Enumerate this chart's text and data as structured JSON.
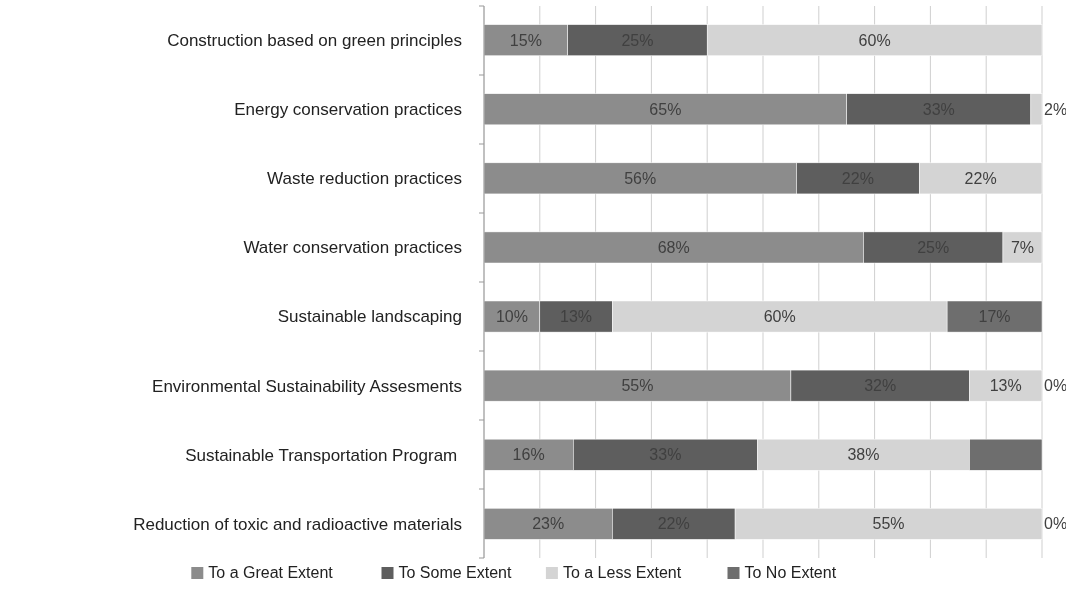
{
  "chart_data": {
    "type": "bar",
    "orientation": "horizontal",
    "stacked": true,
    "categories": [
      "Construction based on green principles",
      "Energy conservation practices",
      "Waste reduction practices",
      "Water conservation practices",
      "Sustainable landscaping",
      "Environmental Sustainability Assesments",
      "Sustainable Transportation Program ",
      "Reduction of toxic and radioactive materials"
    ],
    "series": [
      {
        "name": "To a Great Extent",
        "color": "#8c8c8c",
        "values": [
          15,
          65,
          56,
          68,
          10,
          55,
          16,
          23
        ],
        "value_labels": [
          "15%",
          "65%",
          "56%",
          "68%",
          "10%",
          "55%",
          "16%",
          "23%"
        ]
      },
      {
        "name": "To Some Extent",
        "color": "#5e5e5e",
        "values": [
          25,
          33,
          22,
          25,
          13,
          32,
          33,
          22
        ],
        "value_labels": [
          "25%",
          "33%",
          "22%",
          "25%",
          "13%",
          "32%",
          "33%",
          "22%"
        ]
      },
      {
        "name": "To a Less Extent",
        "color": "#d4d4d4",
        "values": [
          60,
          2,
          22,
          7,
          60,
          13,
          38,
          55
        ],
        "value_labels": [
          "60%",
          "2%",
          "22%",
          "7%",
          "60%",
          "13%",
          "38%",
          "55%"
        ]
      },
      {
        "name": "To No Extent",
        "color": "#6e6e6e",
        "values": [
          0,
          0,
          0,
          0,
          17,
          0,
          13,
          0
        ],
        "value_labels": [
          null,
          null,
          null,
          null,
          "17%",
          "0%",
          null,
          "0%"
        ]
      }
    ],
    "xlim": [
      0,
      100
    ],
    "xticks": [
      {
        "value": 0,
        "label": null
      },
      {
        "value": 10,
        "label": null
      },
      {
        "value": 20,
        "label": null
      },
      {
        "value": 30,
        "label": null
      },
      {
        "value": 40,
        "label": null
      },
      {
        "value": 50,
        "label": null
      },
      {
        "value": 60,
        "label": null
      },
      {
        "value": 70,
        "label": null
      },
      {
        "value": 80,
        "label": null
      },
      {
        "value": 90,
        "label": null
      },
      {
        "value": 100,
        "label": null
      }
    ],
    "grid": "x",
    "tick_labels": "y",
    "legend": "bottom"
  }
}
